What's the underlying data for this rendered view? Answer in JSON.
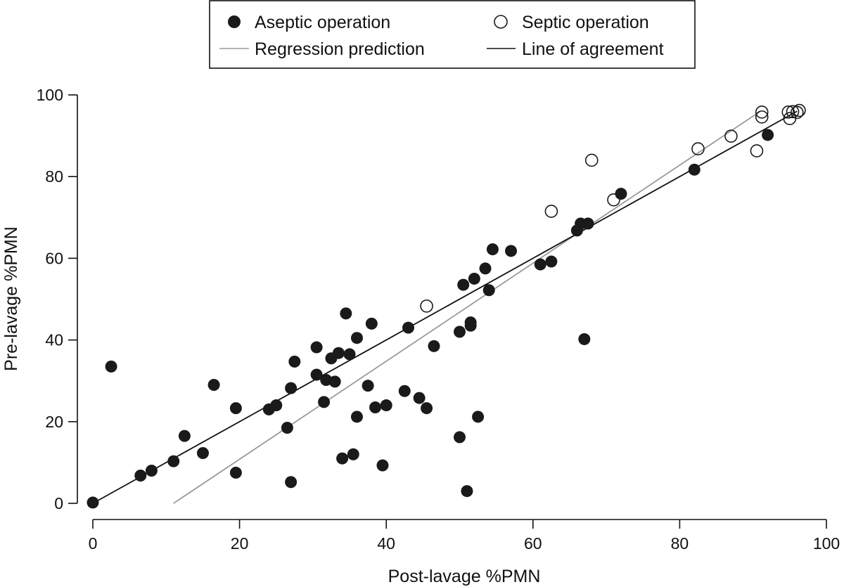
{
  "chart_data": {
    "type": "scatter",
    "xlabel": "Post-lavage %PMN",
    "ylabel": "Pre-lavage %PMN",
    "xlim": [
      0,
      100
    ],
    "ylim": [
      0,
      100
    ],
    "xticks": [
      "0",
      "20",
      "40",
      "60",
      "80",
      "100"
    ],
    "yticks": [
      "0",
      "20",
      "40",
      "60",
      "80",
      "100"
    ],
    "grid": false,
    "legend_position": "top-center",
    "legend": {
      "aseptic_label": "Aseptic operation",
      "septic_label": "Septic operation",
      "regression_label": "Regression prediction",
      "agreement_label": "Line of agreement"
    },
    "series": [
      {
        "name": "Aseptic operation",
        "marker": "filled-circle",
        "color": "#1a1a1a",
        "points": [
          [
            0,
            0.2
          ],
          [
            2.5,
            33.5
          ],
          [
            6.5,
            6.8
          ],
          [
            8,
            8
          ],
          [
            11,
            10.3
          ],
          [
            12.5,
            16.5
          ],
          [
            15,
            12.3
          ],
          [
            16.5,
            29
          ],
          [
            19.5,
            7.5
          ],
          [
            19.5,
            23.3
          ],
          [
            24,
            23
          ],
          [
            25,
            24
          ],
          [
            26.5,
            18.5
          ],
          [
            27,
            5.2
          ],
          [
            27,
            28.2
          ],
          [
            27.5,
            34.7
          ],
          [
            30.5,
            31.5
          ],
          [
            30.5,
            38.2
          ],
          [
            31.5,
            24.8
          ],
          [
            31.8,
            30.2
          ],
          [
            32.5,
            35.5
          ],
          [
            33,
            29.8
          ],
          [
            33.5,
            36.8
          ],
          [
            34,
            11
          ],
          [
            34.5,
            46.5
          ],
          [
            35,
            36.5
          ],
          [
            35.5,
            12
          ],
          [
            36,
            21.2
          ],
          [
            36,
            40.5
          ],
          [
            37.5,
            28.8
          ],
          [
            38,
            44
          ],
          [
            38.5,
            23.5
          ],
          [
            39.5,
            9.3
          ],
          [
            40,
            24
          ],
          [
            42.5,
            27.5
          ],
          [
            43,
            43
          ],
          [
            44.5,
            25.8
          ],
          [
            45.5,
            23.3
          ],
          [
            46.5,
            38.5
          ],
          [
            50,
            16.2
          ],
          [
            50,
            42
          ],
          [
            50.5,
            53.5
          ],
          [
            51,
            3
          ],
          [
            51.5,
            43.5
          ],
          [
            51.5,
            44.3
          ],
          [
            52,
            55
          ],
          [
            52.5,
            21.2
          ],
          [
            53.5,
            57.5
          ],
          [
            54,
            52.2
          ],
          [
            54.5,
            62.2
          ],
          [
            57,
            61.8
          ],
          [
            61,
            58.5
          ],
          [
            62.5,
            59.2
          ],
          [
            66,
            66.8
          ],
          [
            66.5,
            68.5
          ],
          [
            67,
            40.2
          ],
          [
            67.5,
            68.5
          ],
          [
            72,
            75.8
          ],
          [
            82,
            81.7
          ],
          [
            92,
            90.2
          ]
        ]
      },
      {
        "name": "Septic operation",
        "marker": "open-circle",
        "color": "#1a1a1a",
        "points": [
          [
            45.5,
            48.3
          ],
          [
            62.5,
            71.5
          ],
          [
            68,
            84
          ],
          [
            71,
            74.3
          ],
          [
            82.5,
            86.8
          ],
          [
            87,
            89.9
          ],
          [
            90.5,
            86.3
          ],
          [
            91.2,
            95.8
          ],
          [
            91.2,
            94.6
          ],
          [
            95,
            94.2
          ],
          [
            94.8,
            95.8
          ],
          [
            95.4,
            95.9
          ],
          [
            96,
            95.7
          ],
          [
            96.3,
            96.2
          ]
        ]
      },
      {
        "name": "Regression prediction",
        "type": "line",
        "color": "#9a9a9a",
        "points": [
          [
            11,
            0
          ],
          [
            91,
            96
          ]
        ]
      },
      {
        "name": "Line of agreement",
        "type": "line",
        "color": "#111111",
        "points": [
          [
            0,
            0
          ],
          [
            96,
            96
          ]
        ]
      }
    ]
  }
}
